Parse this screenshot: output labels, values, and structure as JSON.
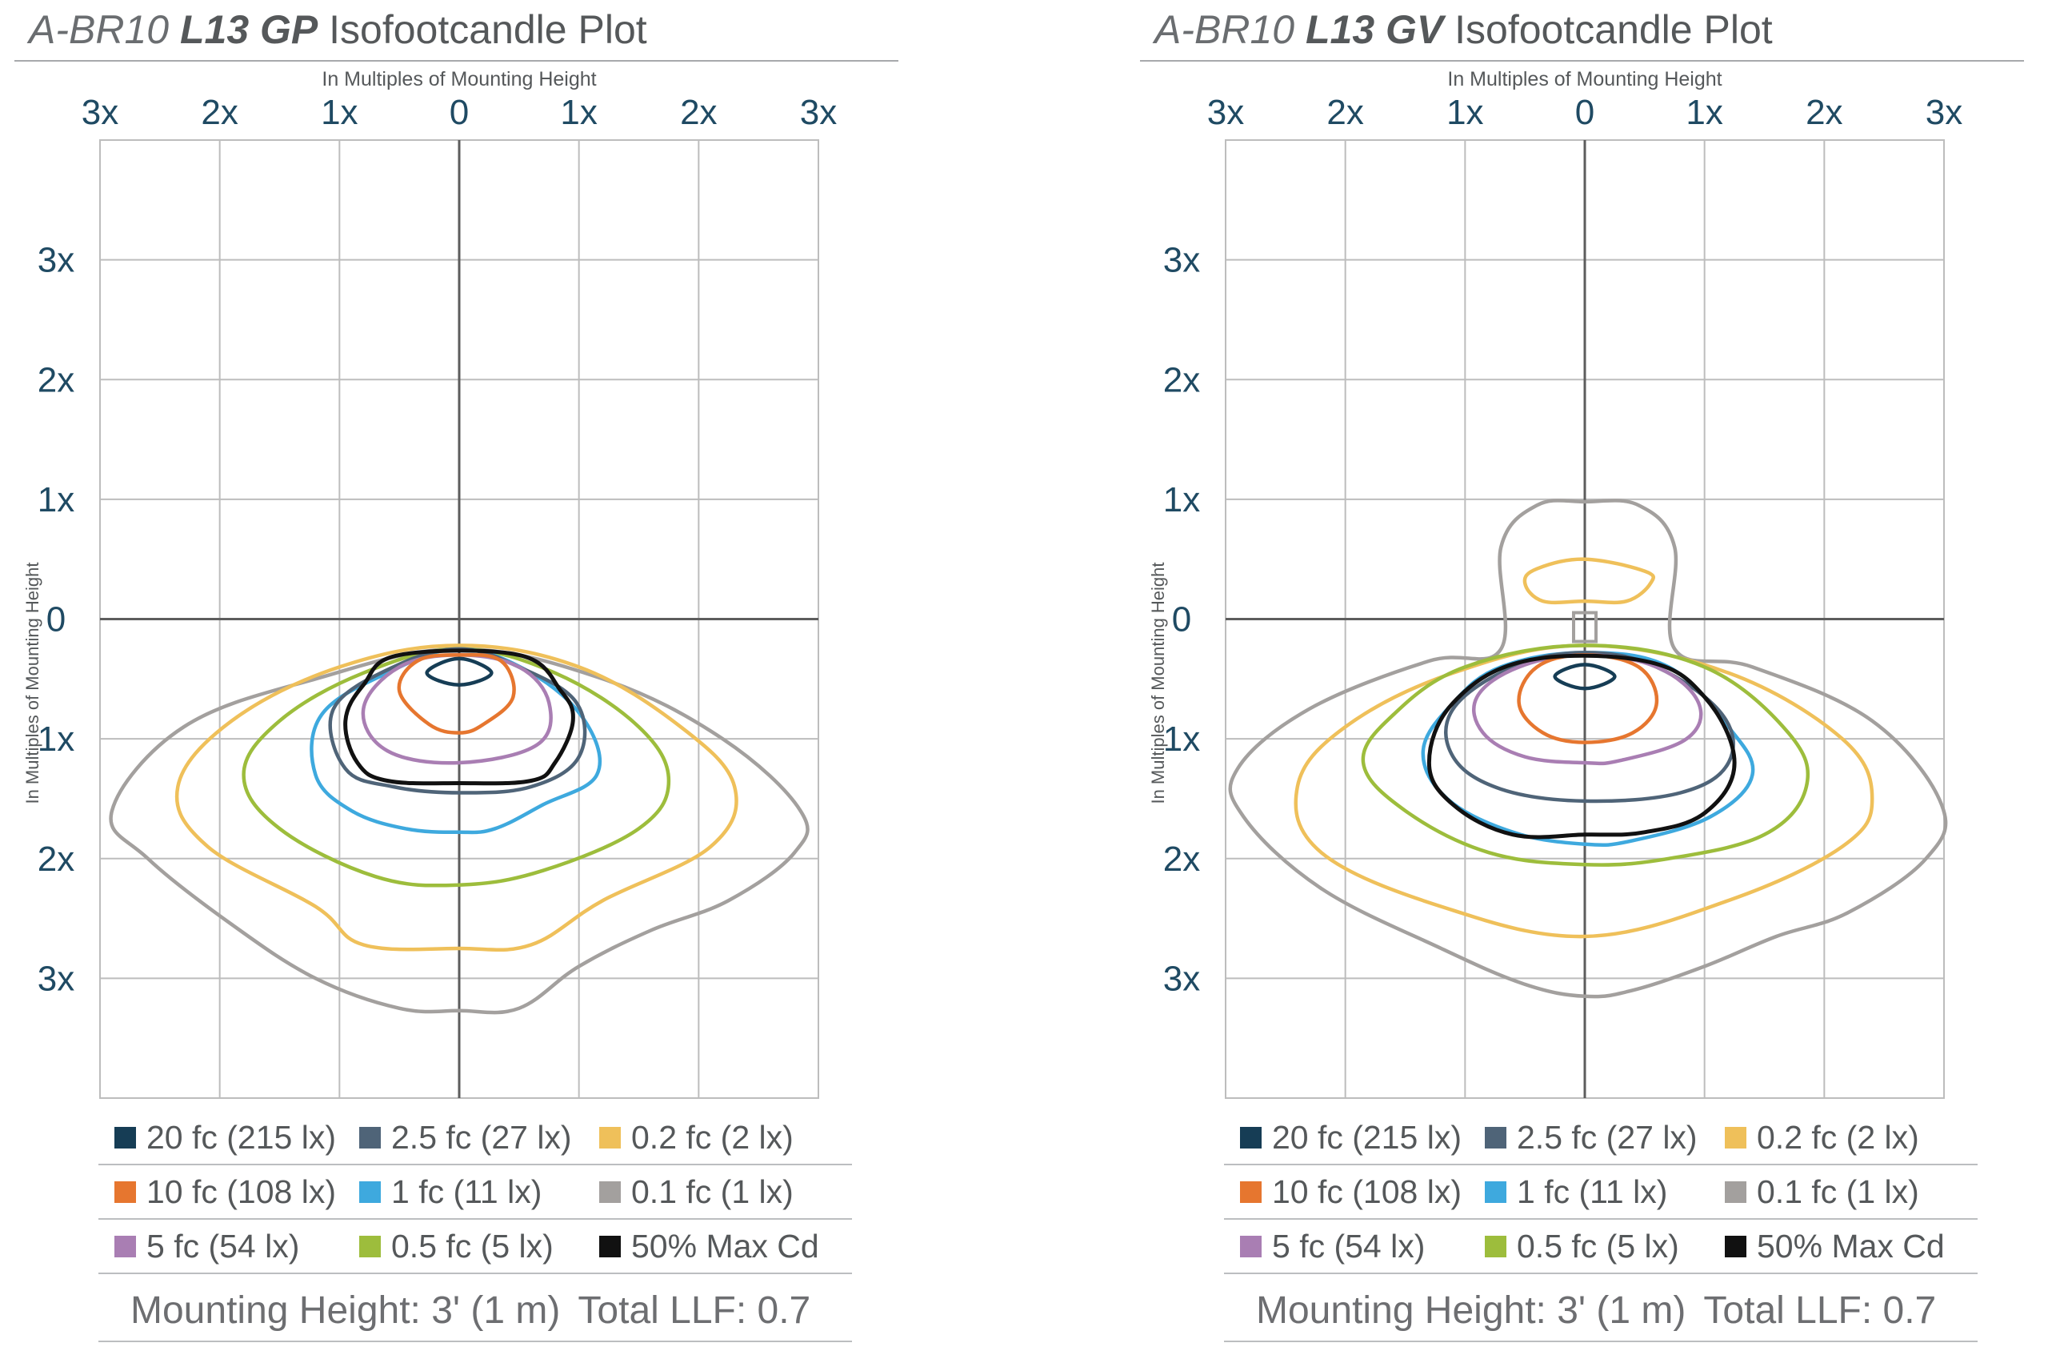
{
  "colors": {
    "fc20": "#163d55",
    "fc10": "#e6762f",
    "fc5": "#a97eb3",
    "fc2_5": "#4f6478",
    "fc1": "#3ea9de",
    "fc0_5": "#9dbd3c",
    "fc0_2": "#efc05a",
    "fc0_1": "#a3a09e",
    "maxcd": "#111111",
    "axis_label": "#1f4a63",
    "grid": "#bdbdbd",
    "axis": "#5d5d5d"
  },
  "panels": [
    {
      "title_prefix": "A-BR10 ",
      "title_model": "L13 GP",
      "title_suffix": " Isofootcandle Plot",
      "mounting_label": "Mounting Height: 3' (1 m)",
      "llf_label": "Total LLF: 0.7"
    },
    {
      "title_prefix": "A-BR10 ",
      "title_model": "L13 GV",
      "title_suffix": " Isofootcandle Plot",
      "mounting_label": "Mounting Height: 3' (1 m)",
      "llf_label": "Total LLF: 0.7"
    }
  ],
  "legend": [
    [
      {
        "label": "20 fc (215 lx)",
        "color_key": "fc20"
      },
      {
        "label": "2.5 fc (27 lx)",
        "color_key": "fc2_5"
      },
      {
        "label": "0.2 fc (2 lx)",
        "color_key": "fc0_2"
      }
    ],
    [
      {
        "label": "10 fc (108 lx)",
        "color_key": "fc10"
      },
      {
        "label": "1 fc (11 lx)",
        "color_key": "fc1"
      },
      {
        "label": "0.1 fc (1 lx)",
        "color_key": "fc0_1"
      }
    ],
    [
      {
        "label": "5 fc (54 lx)",
        "color_key": "fc5"
      },
      {
        "label": "0.5 fc (5 lx)",
        "color_key": "fc0_5"
      },
      {
        "label": "50% Max Cd",
        "color_key": "maxcd"
      }
    ]
  ],
  "chart_data": [
    {
      "type": "contour",
      "title": "A-BR10 L13 GP Isofootcandle Plot",
      "xlabel": "In Multiples of Mounting Height",
      "ylabel": "In Multiples of Mounting Height",
      "x_ticks": [
        "3x",
        "2x",
        "1x",
        "0",
        "1x",
        "2x",
        "3x"
      ],
      "y_ticks": [
        "3x",
        "2x",
        "1x",
        "0",
        "1x",
        "2x",
        "3x"
      ],
      "xlim": [
        -3,
        3
      ],
      "ylim": [
        -4,
        4
      ],
      "grid": true,
      "series": [
        {
          "name": "0.1 fc (1 lx)",
          "color_key": "fc0_1",
          "points": [
            [
              0,
              -0.25
            ],
            [
              1.2,
              -0.5
            ],
            [
              2.2,
              -1
            ],
            [
              2.85,
              -1.6
            ],
            [
              2.8,
              -1.95
            ],
            [
              2.25,
              -2.35
            ],
            [
              1.6,
              -2.6
            ],
            [
              1,
              -2.9
            ],
            [
              0.5,
              -3.25
            ],
            [
              0,
              -3.27
            ],
            [
              -0.5,
              -3.25
            ],
            [
              -1.2,
              -3.0
            ],
            [
              -1.9,
              -2.55
            ],
            [
              -2.6,
              -2.0
            ],
            [
              -2.9,
              -1.6
            ],
            [
              -2.3,
              -0.9
            ],
            [
              -1.2,
              -0.5
            ]
          ]
        },
        {
          "name": "0.2 fc (2 lx)",
          "color_key": "fc0_2",
          "points": [
            [
              0,
              -0.22
            ],
            [
              1,
              -0.4
            ],
            [
              1.85,
              -0.9
            ],
            [
              2.3,
              -1.4
            ],
            [
              2.1,
              -1.9
            ],
            [
              1.2,
              -2.35
            ],
            [
              0.6,
              -2.72
            ],
            [
              0,
              -2.75
            ],
            [
              -0.8,
              -2.72
            ],
            [
              -1.2,
              -2.4
            ],
            [
              -2.1,
              -1.9
            ],
            [
              -2.35,
              -1.4
            ],
            [
              -1.9,
              -0.85
            ],
            [
              -1,
              -0.4
            ]
          ]
        },
        {
          "name": "0.5 fc (5 lx)",
          "color_key": "fc0_5",
          "points": [
            [
              0,
              -0.25
            ],
            [
              0.8,
              -0.45
            ],
            [
              1.5,
              -0.9
            ],
            [
              1.75,
              -1.35
            ],
            [
              1.5,
              -1.75
            ],
            [
              0.7,
              -2.1
            ],
            [
              0,
              -2.22
            ],
            [
              -0.7,
              -2.15
            ],
            [
              -1.5,
              -1.75
            ],
            [
              -1.8,
              -1.3
            ],
            [
              -1.5,
              -0.85
            ],
            [
              -0.8,
              -0.45
            ]
          ]
        },
        {
          "name": "1 fc (11 lx)",
          "color_key": "fc1",
          "points": [
            [
              0,
              -0.25
            ],
            [
              0.6,
              -0.45
            ],
            [
              1.05,
              -0.85
            ],
            [
              1.15,
              -1.3
            ],
            [
              0.7,
              -1.55
            ],
            [
              0.3,
              -1.75
            ],
            [
              0,
              -1.78
            ],
            [
              -0.45,
              -1.75
            ],
            [
              -0.9,
              -1.6
            ],
            [
              -1.2,
              -1.3
            ],
            [
              -1.15,
              -0.8
            ],
            [
              -0.6,
              -0.45
            ]
          ]
        },
        {
          "name": "2.5 fc (27 lx)",
          "color_key": "fc2_5",
          "points": [
            [
              0,
              -0.25
            ],
            [
              0.5,
              -0.4
            ],
            [
              0.98,
              -0.7
            ],
            [
              1.0,
              -1.15
            ],
            [
              0.6,
              -1.4
            ],
            [
              0,
              -1.45
            ],
            [
              -0.55,
              -1.4
            ],
            [
              -0.95,
              -1.25
            ],
            [
              -1.05,
              -0.75
            ],
            [
              -0.55,
              -0.4
            ]
          ]
        },
        {
          "name": "5 fc (54 lx)",
          "color_key": "fc5",
          "points": [
            [
              0,
              -0.3
            ],
            [
              0.5,
              -0.4
            ],
            [
              0.75,
              -0.7
            ],
            [
              0.65,
              -1.05
            ],
            [
              0,
              -1.2
            ],
            [
              -0.6,
              -1.1
            ],
            [
              -0.8,
              -0.75
            ],
            [
              -0.5,
              -0.4
            ]
          ]
        },
        {
          "name": "10 fc (108 lx)",
          "color_key": "fc10",
          "points": [
            [
              0,
              -0.3
            ],
            [
              0.35,
              -0.35
            ],
            [
              0.45,
              -0.65
            ],
            [
              0.2,
              -0.88
            ],
            [
              0,
              -0.95
            ],
            [
              -0.25,
              -0.88
            ],
            [
              -0.5,
              -0.6
            ],
            [
              -0.35,
              -0.35
            ]
          ]
        },
        {
          "name": "20 fc (215 lx)",
          "color_key": "fc20",
          "points": [
            [
              0,
              -0.33
            ],
            [
              0.27,
              -0.45
            ],
            [
              0,
              -0.55
            ],
            [
              -0.27,
              -0.45
            ]
          ]
        },
        {
          "name": "50% Max Cd",
          "color_key": "maxcd",
          "points": [
            [
              -0.5,
              -0.3
            ],
            [
              0.5,
              -0.3
            ],
            [
              0.85,
              -0.6
            ],
            [
              0.95,
              -0.85
            ],
            [
              0.8,
              -1.2
            ],
            [
              0.6,
              -1.35
            ],
            [
              0,
              -1.37
            ],
            [
              -0.6,
              -1.35
            ],
            [
              -0.85,
              -1.2
            ],
            [
              -0.95,
              -0.85
            ],
            [
              -0.8,
              -0.55
            ]
          ]
        }
      ]
    },
    {
      "type": "contour",
      "title": "A-BR10 L13 GV Isofootcandle Plot",
      "xlabel": "In Multiples of Mounting Height",
      "ylabel": "In Multiples of Mounting Height",
      "x_ticks": [
        "3x",
        "2x",
        "1x",
        "0",
        "1x",
        "2x",
        "3x"
      ],
      "y_ticks": [
        "3x",
        "2x",
        "1x",
        "0",
        "1x",
        "2x",
        "3x"
      ],
      "xlim": [
        -3,
        3
      ],
      "ylim": [
        -4,
        4
      ],
      "grid": true,
      "series": [
        {
          "name": "0.1 fc (1 lx)",
          "color_key": "fc0_1",
          "points": [
            [
              0,
              0.98
            ],
            [
              0.45,
              0.95
            ],
            [
              0.75,
              0.6
            ],
            [
              0.75,
              -0.25
            ],
            [
              1.4,
              -0.4
            ],
            [
              2.4,
              -0.85
            ],
            [
              2.98,
              -1.55
            ],
            [
              2.85,
              -2.0
            ],
            [
              2.2,
              -2.45
            ],
            [
              1.6,
              -2.65
            ],
            [
              1,
              -2.9
            ],
            [
              0.4,
              -3.1
            ],
            [
              0,
              -3.15
            ],
            [
              -0.5,
              -3.05
            ],
            [
              -1.2,
              -2.75
            ],
            [
              -2.2,
              -2.25
            ],
            [
              -2.85,
              -1.65
            ],
            [
              -2.9,
              -1.25
            ],
            [
              -2.3,
              -0.75
            ],
            [
              -1.3,
              -0.35
            ],
            [
              -0.7,
              -0.25
            ],
            [
              -0.7,
              0.6
            ],
            [
              -0.4,
              0.95
            ]
          ]
        },
        {
          "name": "0.2 fc (2 lx)",
          "color_key": "fc0_2",
          "points": [
            [
              0,
              0.5
            ],
            [
              0.5,
              0.4
            ],
            [
              0.55,
              0.3
            ],
            [
              0.35,
              0.15
            ],
            [
              0,
              0.15
            ],
            [
              -0.35,
              0.15
            ],
            [
              -0.5,
              0.3
            ],
            [
              -0.4,
              0.42
            ]
          ]
        },
        {
          "name": "0.2 fc (2 lx)",
          "color_key": "fc0_2",
          "points": [
            [
              0,
              -0.22
            ],
            [
              1.2,
              -0.45
            ],
            [
              2.15,
              -1.0
            ],
            [
              2.4,
              -1.5
            ],
            [
              2.15,
              -1.9
            ],
            [
              1.2,
              -2.35
            ],
            [
              0,
              -2.65
            ],
            [
              -1.2,
              -2.4
            ],
            [
              -2.2,
              -1.95
            ],
            [
              -2.4,
              -1.4
            ],
            [
              -2.0,
              -0.9
            ],
            [
              -1.1,
              -0.45
            ]
          ]
        },
        {
          "name": "0.5 fc (5 lx)",
          "color_key": "fc0_5",
          "points": [
            [
              0,
              -0.22
            ],
            [
              1,
              -0.4
            ],
            [
              1.7,
              -0.95
            ],
            [
              1.85,
              -1.4
            ],
            [
              1.5,
              -1.8
            ],
            [
              0.7,
              -2.0
            ],
            [
              0,
              -2.05
            ],
            [
              -0.8,
              -1.95
            ],
            [
              -1.5,
              -1.6
            ],
            [
              -1.85,
              -1.2
            ],
            [
              -1.6,
              -0.8
            ],
            [
              -1,
              -0.4
            ]
          ]
        },
        {
          "name": "1 fc (11 lx)",
          "color_key": "fc1",
          "points": [
            [
              0,
              -0.28
            ],
            [
              0.7,
              -0.4
            ],
            [
              1.2,
              -0.9
            ],
            [
              1.4,
              -1.3
            ],
            [
              1.05,
              -1.65
            ],
            [
              0.4,
              -1.85
            ],
            [
              0,
              -1.88
            ],
            [
              -0.6,
              -1.78
            ],
            [
              -1.15,
              -1.5
            ],
            [
              -1.35,
              -1.1
            ],
            [
              -1.1,
              -0.7
            ],
            [
              -0.7,
              -0.4
            ]
          ]
        },
        {
          "name": "2.5 fc (27 lx)",
          "color_key": "fc2_5",
          "points": [
            [
              0,
              -0.28
            ],
            [
              0.6,
              -0.4
            ],
            [
              1.15,
              -0.8
            ],
            [
              1.2,
              -1.2
            ],
            [
              0.8,
              -1.45
            ],
            [
              0,
              -1.52
            ],
            [
              -0.7,
              -1.42
            ],
            [
              -1.1,
              -1.15
            ],
            [
              -1.1,
              -0.75
            ],
            [
              -0.6,
              -0.4
            ]
          ]
        },
        {
          "name": "5 fc (54 lx)",
          "color_key": "fc5",
          "points": [
            [
              0,
              -0.3
            ],
            [
              0.6,
              -0.4
            ],
            [
              0.95,
              -0.7
            ],
            [
              0.85,
              -1.0
            ],
            [
              0.3,
              -1.18
            ],
            [
              0,
              -1.2
            ],
            [
              -0.5,
              -1.15
            ],
            [
              -0.85,
              -0.95
            ],
            [
              -0.9,
              -0.65
            ],
            [
              -0.55,
              -0.4
            ]
          ]
        },
        {
          "name": "10 fc (108 lx)",
          "color_key": "fc10",
          "points": [
            [
              0,
              -0.3
            ],
            [
              0.45,
              -0.4
            ],
            [
              0.6,
              -0.7
            ],
            [
              0.4,
              -0.95
            ],
            [
              0,
              -1.03
            ],
            [
              -0.35,
              -0.95
            ],
            [
              -0.55,
              -0.7
            ],
            [
              -0.4,
              -0.4
            ]
          ]
        },
        {
          "name": "20 fc (215 lx)",
          "color_key": "fc20",
          "points": [
            [
              0,
              -0.38
            ],
            [
              0.25,
              -0.48
            ],
            [
              0,
              -0.58
            ],
            [
              -0.25,
              -0.48
            ]
          ]
        },
        {
          "name": "50% Max Cd",
          "color_key": "maxcd",
          "points": [
            [
              -0.5,
              -0.35
            ],
            [
              0.5,
              -0.35
            ],
            [
              1.0,
              -0.65
            ],
            [
              1.25,
              -1.2
            ],
            [
              1.0,
              -1.62
            ],
            [
              0.5,
              -1.78
            ],
            [
              0,
              -1.8
            ],
            [
              -0.6,
              -1.8
            ],
            [
              -1.1,
              -1.55
            ],
            [
              -1.3,
              -1.2
            ],
            [
              -1.1,
              -0.7
            ]
          ]
        }
      ]
    }
  ]
}
